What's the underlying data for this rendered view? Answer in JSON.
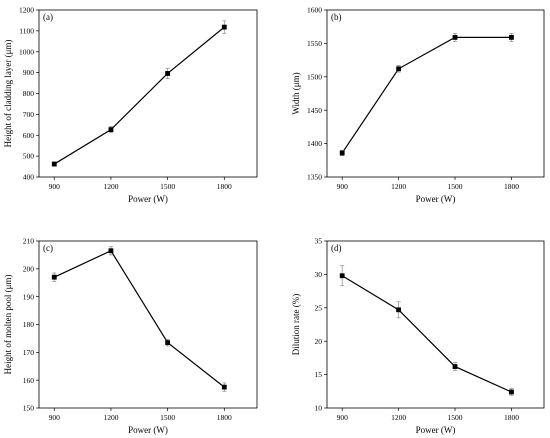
{
  "chart_data": [
    {
      "type": "line",
      "panel_label": "(a)",
      "xlabel": "Power (W)",
      "ylabel": "Height of cladding layer (μm)",
      "categories": [
        "900",
        "1200",
        "1500",
        "1800"
      ],
      "values": [
        462,
        627,
        896,
        1118
      ],
      "errors": [
        10,
        15,
        25,
        30
      ],
      "ylim": [
        400,
        1200
      ],
      "yticks": [
        400,
        500,
        600,
        700,
        800,
        900,
        1000,
        1100,
        1200
      ],
      "grid": false,
      "marker": "square"
    },
    {
      "type": "line",
      "panel_label": "(b)",
      "xlabel": "Power (W)",
      "ylabel": "Width (μm)",
      "categories": [
        "900",
        "1200",
        "1500",
        "1800"
      ],
      "values": [
        1386,
        1512,
        1559,
        1559
      ],
      "errors": [
        4,
        5,
        6,
        6
      ],
      "ylim": [
        1350,
        1600
      ],
      "yticks": [
        1350,
        1400,
        1450,
        1500,
        1550,
        1600
      ],
      "grid": false,
      "marker": "square"
    },
    {
      "type": "line",
      "panel_label": "(c)",
      "xlabel": "Power (W)",
      "ylabel": "Height of molten pool (μm)",
      "categories": [
        "900",
        "1200",
        "1500",
        "1800"
      ],
      "values": [
        197,
        206.5,
        173.5,
        157.5
      ],
      "errors": [
        1.5,
        1.5,
        1.2,
        1.5
      ],
      "ylim": [
        150,
        210
      ],
      "yticks": [
        150,
        160,
        170,
        180,
        190,
        200,
        210
      ],
      "grid": false,
      "marker": "square"
    },
    {
      "type": "line",
      "panel_label": "(d)",
      "xlabel": "Power (W)",
      "ylabel": "Dilution rate (%)",
      "categories": [
        "900",
        "1200",
        "1500",
        "1800"
      ],
      "values": [
        29.8,
        24.7,
        16.2,
        12.4
      ],
      "errors": [
        1.5,
        1.2,
        0.6,
        0.5
      ],
      "ylim": [
        10,
        35
      ],
      "yticks": [
        10,
        15,
        20,
        25,
        30,
        35
      ],
      "grid": false,
      "marker": "square"
    }
  ]
}
